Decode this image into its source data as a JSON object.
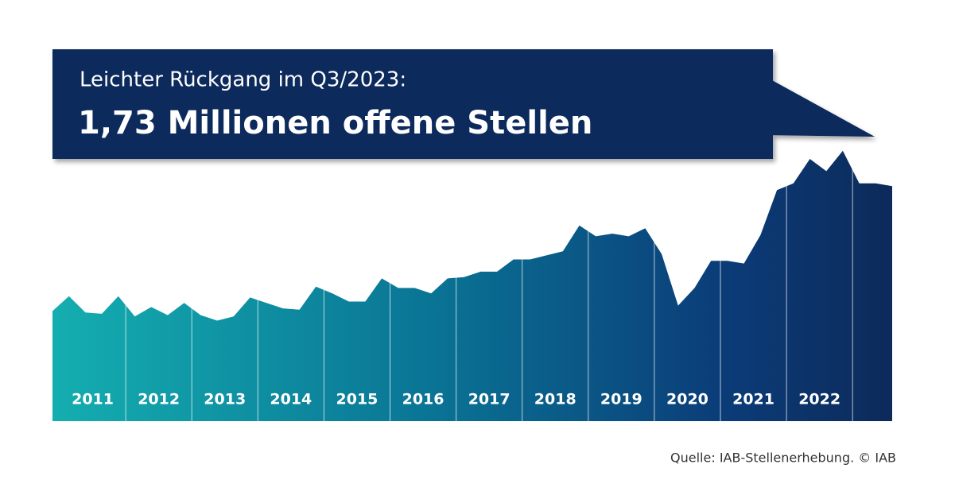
{
  "chart_data": {
    "type": "area",
    "title": "Leichter Rückgang im Q3/2023:",
    "subtitle": "1,73 Millionen offene Stellen",
    "source": "Quelle: IAB-Stellenerhebung. © IAB",
    "year_labels": [
      "2011",
      "2012",
      "2013",
      "2014",
      "2015",
      "2016",
      "2017",
      "2018",
      "2019",
      "2020",
      "2021",
      "2022"
    ],
    "values": [
      0.81,
      0.92,
      0.8,
      0.79,
      0.92,
      0.77,
      0.84,
      0.78,
      0.87,
      0.78,
      0.74,
      0.77,
      0.91,
      0.87,
      0.83,
      0.82,
      0.99,
      0.94,
      0.88,
      0.88,
      1.05,
      0.98,
      0.98,
      0.94,
      1.05,
      1.06,
      1.1,
      1.1,
      1.19,
      1.19,
      1.22,
      1.25,
      1.44,
      1.36,
      1.38,
      1.36,
      1.42,
      1.23,
      0.85,
      0.98,
      1.18,
      1.18,
      1.16,
      1.37,
      1.7,
      1.75,
      1.93,
      1.84,
      1.99,
      1.75,
      1.75,
      1.73
    ]
  }
}
